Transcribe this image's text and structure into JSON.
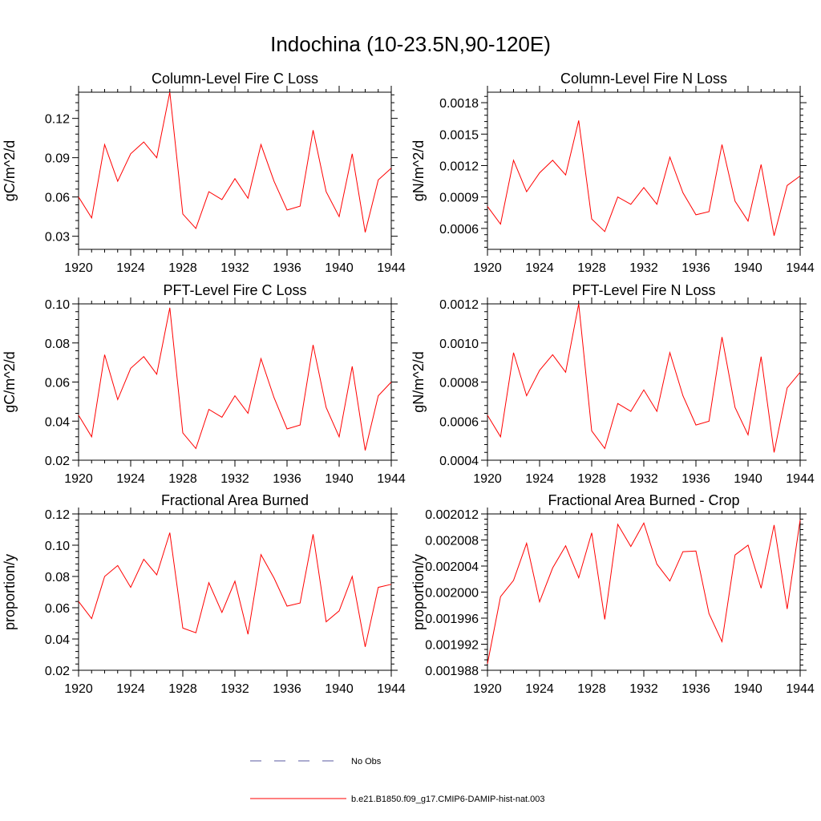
{
  "figure": {
    "title": "Indochina (10-23.5N,90-120E)",
    "line_color": "#ff0000",
    "obs_color": "#5a5aa0"
  },
  "legend": {
    "items": [
      {
        "label": "No Obs",
        "style": "dashed",
        "color": "#5a5aa0"
      },
      {
        "label": "b.e21.B1850.f09_g17.CMIP6-DAMIP-hist-nat.003",
        "style": "solid",
        "color": "#ff0000"
      }
    ]
  },
  "chart_data": [
    {
      "type": "line",
      "title": "Column-Level Fire C Loss",
      "ylabel": "gC/m^2/d",
      "xlim": [
        1920,
        1944
      ],
      "ylim": [
        0.02,
        0.14
      ],
      "yticks": [
        0.03,
        0.06,
        0.09,
        0.12
      ],
      "ytick_labels": [
        "0.03",
        "0.06",
        "0.09",
        "0.12"
      ],
      "xticks": [
        1920,
        1924,
        1928,
        1932,
        1936,
        1940,
        1944
      ],
      "x": [
        1920,
        1921,
        1922,
        1923,
        1924,
        1925,
        1926,
        1927,
        1928,
        1929,
        1930,
        1931,
        1932,
        1933,
        1934,
        1935,
        1936,
        1937,
        1938,
        1939,
        1940,
        1941,
        1942,
        1943,
        1944
      ],
      "series": [
        {
          "name": "b.e21.B1850.f09_g17.CMIP6-DAMIP-hist-nat.003",
          "values": [
            0.06,
            0.044,
            0.1,
            0.072,
            0.093,
            0.102,
            0.09,
            0.14,
            0.047,
            0.036,
            0.064,
            0.058,
            0.074,
            0.059,
            0.1,
            0.072,
            0.05,
            0.053,
            0.111,
            0.064,
            0.045,
            0.093,
            0.033,
            0.073,
            0.082
          ]
        }
      ]
    },
    {
      "type": "line",
      "title": "Column-Level Fire N Loss",
      "ylabel": "gN/m^2/d",
      "xlim": [
        1920,
        1944
      ],
      "ylim": [
        0.0004,
        0.0019
      ],
      "yticks": [
        0.0006,
        0.0009,
        0.0012,
        0.0015,
        0.0018
      ],
      "ytick_labels": [
        "0.0006",
        "0.0009",
        "0.0012",
        "0.0015",
        "0.0018"
      ],
      "xticks": [
        1920,
        1924,
        1928,
        1932,
        1936,
        1940,
        1944
      ],
      "x": [
        1920,
        1921,
        1922,
        1923,
        1924,
        1925,
        1926,
        1927,
        1928,
        1929,
        1930,
        1931,
        1932,
        1933,
        1934,
        1935,
        1936,
        1937,
        1938,
        1939,
        1940,
        1941,
        1942,
        1943,
        1944
      ],
      "series": [
        {
          "name": "b.e21.B1850.f09_g17.CMIP6-DAMIP-hist-nat.003",
          "values": [
            0.00081,
            0.00064,
            0.00125,
            0.00095,
            0.00113,
            0.00125,
            0.00111,
            0.00163,
            0.00069,
            0.00057,
            0.0009,
            0.00083,
            0.00099,
            0.00083,
            0.00128,
            0.00094,
            0.00073,
            0.00076,
            0.0014,
            0.00086,
            0.00067,
            0.00121,
            0.00053,
            0.00101,
            0.0011
          ]
        }
      ]
    },
    {
      "type": "line",
      "title": "PFT-Level Fire C Loss",
      "ylabel": "gC/m^2/d",
      "xlim": [
        1920,
        1944
      ],
      "ylim": [
        0.02,
        0.1
      ],
      "yticks": [
        0.02,
        0.04,
        0.06,
        0.08,
        0.1
      ],
      "ytick_labels": [
        "0.02",
        "0.04",
        "0.06",
        "0.08",
        "0.10"
      ],
      "xticks": [
        1920,
        1924,
        1928,
        1932,
        1936,
        1940,
        1944
      ],
      "x": [
        1920,
        1921,
        1922,
        1923,
        1924,
        1925,
        1926,
        1927,
        1928,
        1929,
        1930,
        1931,
        1932,
        1933,
        1934,
        1935,
        1936,
        1937,
        1938,
        1939,
        1940,
        1941,
        1942,
        1943,
        1944
      ],
      "series": [
        {
          "name": "b.e21.B1850.f09_g17.CMIP6-DAMIP-hist-nat.003",
          "values": [
            0.043,
            0.032,
            0.074,
            0.051,
            0.067,
            0.073,
            0.064,
            0.098,
            0.034,
            0.026,
            0.046,
            0.042,
            0.053,
            0.044,
            0.072,
            0.052,
            0.036,
            0.038,
            0.079,
            0.047,
            0.032,
            0.068,
            0.025,
            0.053,
            0.06
          ]
        }
      ]
    },
    {
      "type": "line",
      "title": "PFT-Level Fire N Loss",
      "ylabel": "gN/m^2/d",
      "xlim": [
        1920,
        1944
      ],
      "ylim": [
        0.0004,
        0.0012
      ],
      "yticks": [
        0.0004,
        0.0006,
        0.0008,
        0.001,
        0.0012
      ],
      "ytick_labels": [
        "0.0004",
        "0.0006",
        "0.0008",
        "0.0010",
        "0.0012"
      ],
      "xticks": [
        1920,
        1924,
        1928,
        1932,
        1936,
        1940,
        1944
      ],
      "x": [
        1920,
        1921,
        1922,
        1923,
        1924,
        1925,
        1926,
        1927,
        1928,
        1929,
        1930,
        1931,
        1932,
        1933,
        1934,
        1935,
        1936,
        1937,
        1938,
        1939,
        1940,
        1941,
        1942,
        1943,
        1944
      ],
      "series": [
        {
          "name": "b.e21.B1850.f09_g17.CMIP6-DAMIP-hist-nat.003",
          "values": [
            0.00063,
            0.00052,
            0.00095,
            0.00073,
            0.00086,
            0.00094,
            0.00085,
            0.0012,
            0.00055,
            0.00046,
            0.00069,
            0.00065,
            0.00076,
            0.00065,
            0.00095,
            0.00073,
            0.00058,
            0.0006,
            0.00103,
            0.00067,
            0.00053,
            0.00093,
            0.00044,
            0.00077,
            0.00085
          ]
        }
      ]
    },
    {
      "type": "line",
      "title": "Fractional Area Burned",
      "ylabel": "proportion/y",
      "xlim": [
        1920,
        1944
      ],
      "ylim": [
        0.02,
        0.12
      ],
      "yticks": [
        0.02,
        0.04,
        0.06,
        0.08,
        0.1,
        0.12
      ],
      "ytick_labels": [
        "0.02",
        "0.04",
        "0.06",
        "0.08",
        "0.10",
        "0.12"
      ],
      "xticks": [
        1920,
        1924,
        1928,
        1932,
        1936,
        1940,
        1944
      ],
      "x": [
        1920,
        1921,
        1922,
        1923,
        1924,
        1925,
        1926,
        1927,
        1928,
        1929,
        1930,
        1931,
        1932,
        1933,
        1934,
        1935,
        1936,
        1937,
        1938,
        1939,
        1940,
        1941,
        1942,
        1943,
        1944
      ],
      "series": [
        {
          "name": "b.e21.B1850.f09_g17.CMIP6-DAMIP-hist-nat.003",
          "values": [
            0.064,
            0.053,
            0.08,
            0.087,
            0.073,
            0.091,
            0.081,
            0.108,
            0.047,
            0.044,
            0.076,
            0.057,
            0.077,
            0.043,
            0.094,
            0.079,
            0.061,
            0.063,
            0.107,
            0.051,
            0.058,
            0.08,
            0.035,
            0.073,
            0.075
          ]
        }
      ]
    },
    {
      "type": "line",
      "title": "Fractional Area Burned - Crop",
      "ylabel": "proportion/y",
      "xlim": [
        1920,
        1944
      ],
      "ylim": [
        0.001988,
        0.002012
      ],
      "yticks": [
        0.001988,
        0.001992,
        0.001996,
        0.002,
        0.002004,
        0.002008,
        0.002012
      ],
      "ytick_labels": [
        "0.001988",
        "0.001992",
        "0.001996",
        "0.002000",
        "0.002004",
        "0.002008",
        "0.002012"
      ],
      "xticks": [
        1920,
        1924,
        1928,
        1932,
        1936,
        1940,
        1944
      ],
      "x": [
        1920,
        1921,
        1922,
        1923,
        1924,
        1925,
        1926,
        1927,
        1928,
        1929,
        1930,
        1931,
        1932,
        1933,
        1934,
        1935,
        1936,
        1937,
        1938,
        1939,
        1940,
        1941,
        1942,
        1943,
        1944
      ],
      "series": [
        {
          "name": "b.e21.B1850.f09_g17.CMIP6-DAMIP-hist-nat.003",
          "values": [
            0.001989,
            0.0019993,
            0.0020018,
            0.0020075,
            0.0019985,
            0.0020037,
            0.0020071,
            0.0020022,
            0.0020091,
            0.0019958,
            0.0020104,
            0.002007,
            0.0020106,
            0.0020043,
            0.0020017,
            0.0020062,
            0.0020063,
            0.0019967,
            0.0019924,
            0.0020057,
            0.0020072,
            0.0020006,
            0.0020103,
            0.0019974,
            0.0020111
          ]
        }
      ]
    }
  ]
}
